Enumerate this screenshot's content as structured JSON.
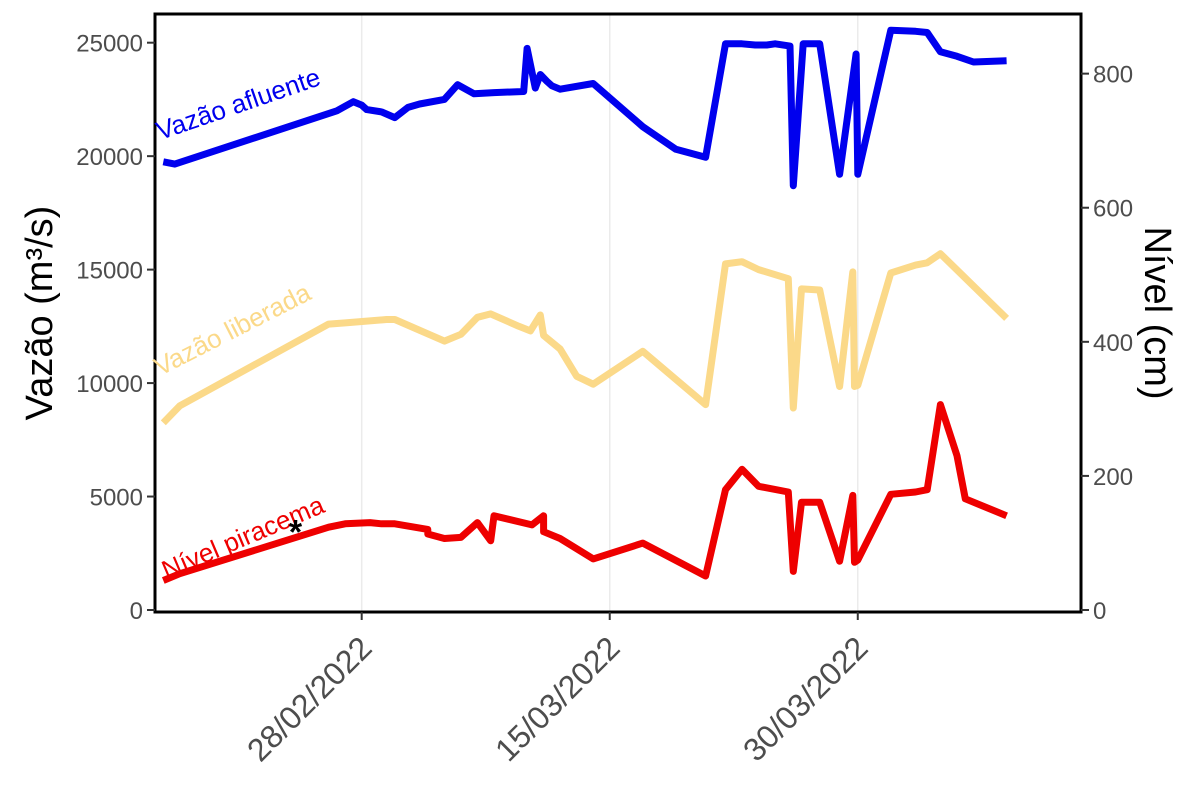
{
  "chart_data": {
    "type": "line",
    "ylabel_left": "Vazão (m³/s)",
    "ylabel_right": "Nível (cm)",
    "ylim_left": [
      0,
      26000
    ],
    "ylim_right": [
      0,
      880
    ],
    "left_ticks": [
      "0",
      "5000",
      "10000",
      "15000",
      "20000",
      "25000"
    ],
    "left_tick_values": [
      0,
      5000,
      10000,
      15000,
      20000,
      25000
    ],
    "right_ticks": [
      "0",
      "200",
      "400",
      "600",
      "800"
    ],
    "right_tick_values": [
      0,
      200,
      400,
      600,
      800
    ],
    "x_ticks": [
      "28/02/2022",
      "15/03/2022",
      "30/03/2022"
    ],
    "x_tick_days": [
      0,
      15,
      30
    ],
    "xlim_days": [
      -12.5,
      43.5
    ],
    "grid": "vertical only",
    "annotation": "*",
    "annotation_point": {
      "day": -4,
      "value": 3550
    },
    "series": [
      {
        "name": "Vazão afluente",
        "axis": "left",
        "color": "#0000ee",
        "label_anchor": {
          "day": -12.2,
          "value": 20700
        },
        "label_angle": -19,
        "points": [
          [
            -12,
            19750
          ],
          [
            -11.3,
            19650
          ],
          [
            -1.5,
            22000
          ],
          [
            -1,
            22200
          ],
          [
            -0.5,
            22400
          ],
          [
            0,
            22250
          ],
          [
            0.3,
            22050
          ],
          [
            1.2,
            21950
          ],
          [
            2,
            21700
          ],
          [
            2.8,
            22150
          ],
          [
            3.5,
            22300
          ],
          [
            5,
            22500
          ],
          [
            5.8,
            23150
          ],
          [
            6.8,
            22750
          ],
          [
            8,
            22800
          ],
          [
            9.8,
            22850
          ],
          [
            10,
            24750
          ],
          [
            10.5,
            23000
          ],
          [
            10.8,
            23600
          ],
          [
            11.2,
            23300
          ],
          [
            11.5,
            23100
          ],
          [
            12,
            22950
          ],
          [
            14,
            23200
          ],
          [
            17,
            21300
          ],
          [
            19,
            20300
          ],
          [
            20.8,
            19950
          ],
          [
            22,
            24950
          ],
          [
            23,
            24950
          ],
          [
            23.8,
            24900
          ],
          [
            24.5,
            24900
          ],
          [
            25,
            24950
          ],
          [
            25.9,
            24850
          ],
          [
            26.1,
            18700
          ],
          [
            26.7,
            24950
          ],
          [
            27.7,
            24950
          ],
          [
            28.9,
            19200
          ],
          [
            29.9,
            24500
          ],
          [
            30,
            19200
          ],
          [
            32,
            25550
          ],
          [
            33.5,
            25500
          ],
          [
            34.2,
            25450
          ],
          [
            35,
            24600
          ],
          [
            36,
            24400
          ],
          [
            37,
            24150
          ],
          [
            39,
            24200
          ]
        ]
      },
      {
        "name": "Vazão liberada",
        "axis": "left",
        "color": "#fbd989",
        "label_anchor": {
          "day": -12.2,
          "value": 10300
        },
        "label_angle": -27,
        "points": [
          [
            -12,
            8250
          ],
          [
            -11,
            9000
          ],
          [
            -2,
            12600
          ],
          [
            -1,
            12650
          ],
          [
            1.5,
            12800
          ],
          [
            2,
            12800
          ],
          [
            5,
            11850
          ],
          [
            6,
            12150
          ],
          [
            7,
            12900
          ],
          [
            7.8,
            13050
          ],
          [
            9.5,
            12500
          ],
          [
            10.2,
            12300
          ],
          [
            10.8,
            13000
          ],
          [
            11,
            12100
          ],
          [
            12,
            11500
          ],
          [
            13,
            10300
          ],
          [
            14,
            9950
          ],
          [
            17,
            11400
          ],
          [
            20.8,
            9050
          ],
          [
            22,
            15250
          ],
          [
            23,
            15350
          ],
          [
            24,
            15000
          ],
          [
            25.8,
            14600
          ],
          [
            26.1,
            8900
          ],
          [
            26.6,
            14150
          ],
          [
            27.7,
            14100
          ],
          [
            28.9,
            9850
          ],
          [
            29.7,
            14900
          ],
          [
            29.8,
            9850
          ],
          [
            30,
            9900
          ],
          [
            32,
            14850
          ],
          [
            33.5,
            15200
          ],
          [
            34.2,
            15300
          ],
          [
            35,
            15700
          ],
          [
            39,
            12850
          ]
        ]
      },
      {
        "name": "Nível piracema",
        "axis": "right",
        "color": "#ee0000",
        "label_anchor": {
          "day": -11.8,
          "value": 1350
        },
        "label_angle": -23,
        "points": [
          [
            -12,
            1300
          ],
          [
            -11,
            1600
          ],
          [
            -2,
            3650
          ],
          [
            -1,
            3800
          ],
          [
            0.5,
            3850
          ],
          [
            1.2,
            3800
          ],
          [
            2,
            3800
          ],
          [
            4,
            3550
          ],
          [
            4,
            3350
          ],
          [
            5,
            3150
          ],
          [
            6,
            3200
          ],
          [
            7,
            3850
          ],
          [
            7.8,
            3050
          ],
          [
            8,
            4150
          ],
          [
            10.3,
            3750
          ],
          [
            11,
            4150
          ],
          [
            11,
            3450
          ],
          [
            12,
            3150
          ],
          [
            14,
            2250
          ],
          [
            17,
            2950
          ],
          [
            20.8,
            1500
          ],
          [
            22,
            5300
          ],
          [
            23,
            6200
          ],
          [
            24,
            5450
          ],
          [
            25.8,
            5200
          ],
          [
            26.1,
            1700
          ],
          [
            26.6,
            4750
          ],
          [
            27.7,
            4750
          ],
          [
            28.9,
            2150
          ],
          [
            29.7,
            5050
          ],
          [
            29.8,
            2100
          ],
          [
            30,
            2200
          ],
          [
            32,
            5100
          ],
          [
            33.5,
            5200
          ],
          [
            34.2,
            5300
          ],
          [
            35,
            9050
          ],
          [
            36,
            6800
          ],
          [
            36.5,
            4900
          ],
          [
            39,
            4150
          ]
        ]
      }
    ]
  }
}
